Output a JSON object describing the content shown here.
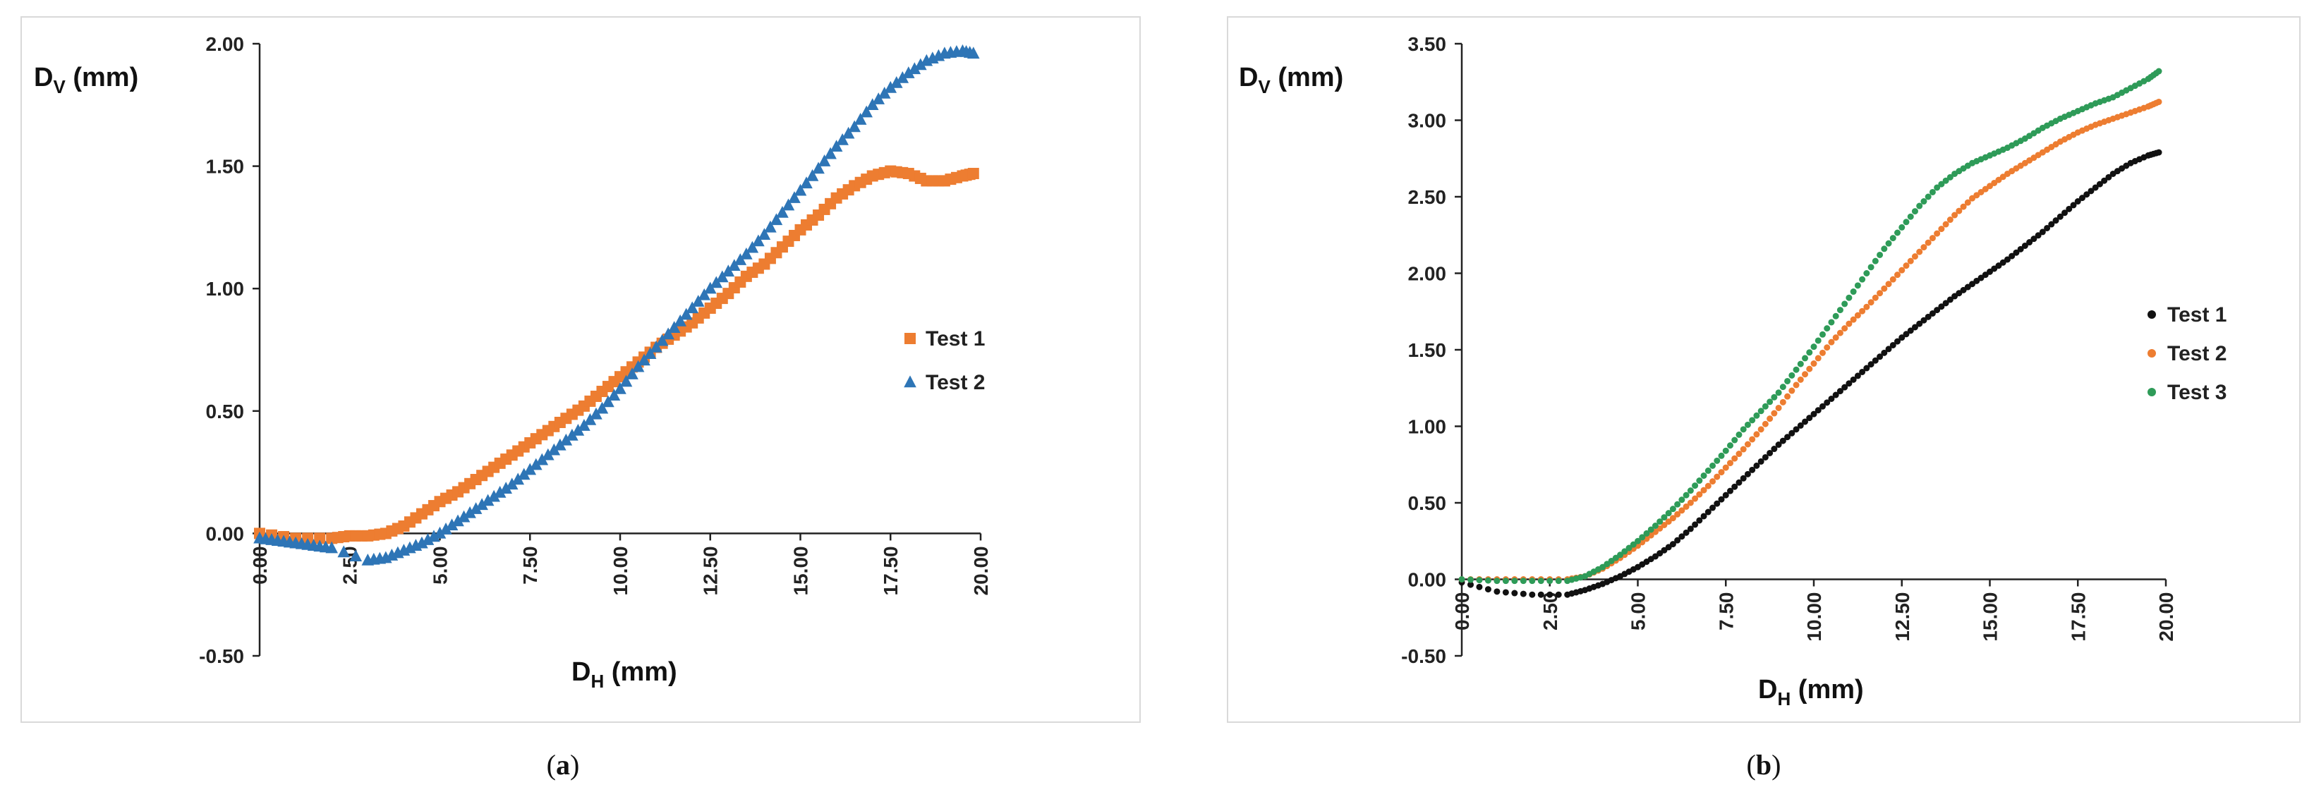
{
  "chart_data": [
    {
      "type": "scatter",
      "panel_label": "a",
      "ylabel": {
        "main": "D",
        "sub": "V",
        "unit": " (mm)"
      },
      "xlabel": {
        "main": "D",
        "sub": "H",
        "unit": " (mm)"
      },
      "xlim": [
        0,
        20
      ],
      "ylim": [
        -0.5,
        2.0
      ],
      "xticks": [
        "0.00",
        "2.50",
        "5.00",
        "7.50",
        "10.00",
        "12.50",
        "15.00",
        "17.50",
        "20.00"
      ],
      "yticks": [
        "-0.50",
        "0.00",
        "0.50",
        "1.00",
        "1.50",
        "2.00"
      ],
      "legend_position": "right",
      "series": [
        {
          "name": "Test 1",
          "marker": "square",
          "color": "#ED7D31",
          "x": [
            0,
            1,
            2,
            2.5,
            3,
            3.5,
            4,
            4.5,
            5,
            5.5,
            6,
            6.5,
            7,
            7.5,
            8,
            8.5,
            9,
            9.5,
            10,
            10.5,
            11,
            11.5,
            12,
            12.5,
            13,
            13.5,
            14,
            14.5,
            15,
            15.5,
            16,
            16.5,
            17,
            17.5,
            18,
            18.5,
            19,
            19.5,
            19.8
          ],
          "y": [
            0,
            -0.02,
            -0.02,
            -0.01,
            -0.01,
            0.0,
            0.03,
            0.08,
            0.13,
            0.17,
            0.22,
            0.27,
            0.32,
            0.37,
            0.42,
            0.47,
            0.52,
            0.58,
            0.64,
            0.7,
            0.76,
            0.81,
            0.86,
            0.92,
            0.98,
            1.05,
            1.1,
            1.17,
            1.24,
            1.3,
            1.37,
            1.42,
            1.46,
            1.48,
            1.47,
            1.44,
            1.44,
            1.46,
            1.47
          ]
        },
        {
          "name": "Test 2",
          "marker": "triangle",
          "color": "#2E75B6",
          "x": [
            0,
            0.5,
            1,
            1.5,
            2,
            3,
            3.5,
            4,
            4.5,
            5,
            5.5,
            6,
            6.5,
            7,
            7.5,
            8,
            8.5,
            9,
            9.5,
            10,
            10.5,
            11,
            11.5,
            12,
            12.5,
            13,
            13.5,
            14,
            14.5,
            15,
            15.5,
            16,
            16.5,
            17,
            17.5,
            18,
            18.5,
            19,
            19.5,
            19.8
          ],
          "y": [
            -0.02,
            -0.03,
            -0.04,
            -0.05,
            -0.06,
            -0.11,
            -0.1,
            -0.07,
            -0.04,
            0.0,
            0.05,
            0.1,
            0.15,
            0.2,
            0.26,
            0.32,
            0.38,
            0.44,
            0.51,
            0.59,
            0.68,
            0.76,
            0.84,
            0.92,
            1.0,
            1.07,
            1.14,
            1.22,
            1.31,
            1.4,
            1.49,
            1.58,
            1.66,
            1.75,
            1.82,
            1.88,
            1.93,
            1.96,
            1.97,
            1.96
          ]
        }
      ]
    },
    {
      "type": "scatter",
      "panel_label": "b",
      "ylabel": {
        "main": "D",
        "sub": "V",
        "unit": " (mm)"
      },
      "xlabel": {
        "main": "D",
        "sub": "H",
        "unit": " (mm)"
      },
      "xlim": [
        0,
        20
      ],
      "ylim": [
        -0.5,
        3.5
      ],
      "xticks": [
        "0.00",
        "2.50",
        "5.00",
        "7.50",
        "10.00",
        "12.50",
        "15.00",
        "17.50",
        "20.00"
      ],
      "yticks": [
        "-0.50",
        "0.00",
        "0.50",
        "1.00",
        "1.50",
        "2.00",
        "2.50",
        "3.00",
        "3.50"
      ],
      "legend_position": "right",
      "series": [
        {
          "name": "Test 1",
          "marker": "circle",
          "color": "#111111",
          "x": [
            0,
            1,
            2,
            3,
            3.5,
            4,
            4.5,
            5,
            5.5,
            6,
            6.5,
            7,
            7.5,
            8,
            8.5,
            9,
            9.5,
            10,
            10.5,
            11,
            11.5,
            12,
            12.5,
            13,
            13.5,
            14,
            14.5,
            15,
            15.5,
            16,
            16.5,
            17,
            17.5,
            18,
            18.5,
            19,
            19.5,
            19.8
          ],
          "y": [
            -0.02,
            -0.08,
            -0.1,
            -0.1,
            -0.07,
            -0.03,
            0.02,
            0.08,
            0.15,
            0.23,
            0.33,
            0.44,
            0.55,
            0.66,
            0.77,
            0.88,
            0.98,
            1.08,
            1.18,
            1.28,
            1.38,
            1.48,
            1.58,
            1.67,
            1.76,
            1.85,
            1.93,
            2.01,
            2.09,
            2.18,
            2.27,
            2.37,
            2.47,
            2.56,
            2.65,
            2.72,
            2.77,
            2.79
          ]
        },
        {
          "name": "Test 2",
          "marker": "circle",
          "color": "#ED7D31",
          "x": [
            0,
            1,
            2,
            3,
            3.5,
            4,
            4.5,
            5,
            5.5,
            6,
            6.5,
            7,
            7.5,
            8,
            8.5,
            9,
            9.5,
            10,
            10.5,
            11,
            11.5,
            12,
            12.5,
            13,
            13.5,
            14,
            14.5,
            15,
            15.5,
            16,
            16.5,
            17,
            17.5,
            18,
            18.5,
            19,
            19.5,
            19.8
          ],
          "y": [
            0,
            0,
            0,
            0,
            0.02,
            0.07,
            0.14,
            0.22,
            0.31,
            0.4,
            0.5,
            0.61,
            0.73,
            0.85,
            0.98,
            1.12,
            1.27,
            1.41,
            1.55,
            1.67,
            1.78,
            1.9,
            2.02,
            2.14,
            2.26,
            2.38,
            2.49,
            2.57,
            2.65,
            2.72,
            2.79,
            2.86,
            2.92,
            2.97,
            3.01,
            3.05,
            3.09,
            3.12
          ]
        },
        {
          "name": "Test 3",
          "marker": "circle",
          "color": "#2E9B58",
          "x": [
            0,
            1,
            2,
            3,
            3.5,
            4,
            4.5,
            5,
            5.5,
            6,
            6.5,
            7,
            7.5,
            8,
            8.5,
            9,
            9.5,
            10,
            10.5,
            11,
            11.5,
            12,
            12.5,
            13,
            13.5,
            14,
            14.5,
            15,
            15.5,
            16,
            16.5,
            17,
            17.5,
            18,
            18.5,
            19,
            19.5,
            19.8
          ],
          "y": [
            0,
            -0.01,
            -0.01,
            -0.01,
            0.02,
            0.08,
            0.16,
            0.25,
            0.35,
            0.46,
            0.58,
            0.71,
            0.84,
            0.98,
            1.1,
            1.22,
            1.37,
            1.52,
            1.68,
            1.84,
            2.0,
            2.16,
            2.3,
            2.44,
            2.56,
            2.65,
            2.72,
            2.77,
            2.82,
            2.88,
            2.95,
            3.01,
            3.06,
            3.11,
            3.15,
            3.21,
            3.27,
            3.32
          ]
        }
      ]
    }
  ]
}
